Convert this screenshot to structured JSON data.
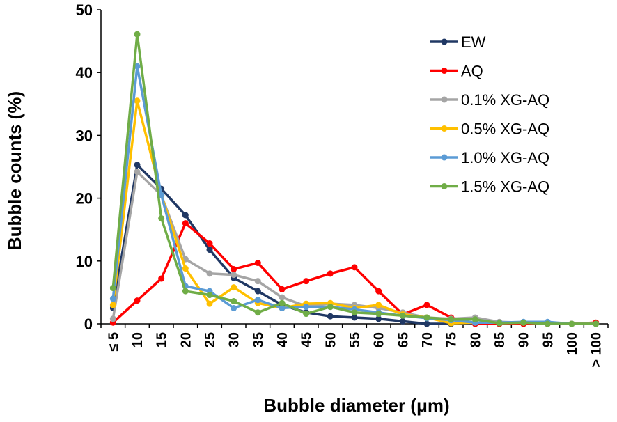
{
  "chart_data": {
    "type": "line",
    "xlabel": "Bubble diameter (μm)",
    "ylabel": "Bubble counts (%)",
    "ylim": [
      0,
      50
    ],
    "y_ticks": [
      "0",
      "10",
      "20",
      "30",
      "40",
      "50"
    ],
    "categories": [
      "≤ 5",
      "10",
      "15",
      "20",
      "25",
      "30",
      "35",
      "40",
      "45",
      "50",
      "55",
      "60",
      "65",
      "70",
      "75",
      "80",
      "85",
      "90",
      "95",
      "100",
      "> 100"
    ],
    "grid": false,
    "legend_position": "top-right",
    "series": [
      {
        "name": "EW",
        "color": "#203864",
        "values": [
          2.5,
          25.3,
          21.5,
          17.3,
          11.8,
          7.3,
          5.2,
          3.0,
          1.8,
          1.2,
          1.0,
          0.8,
          0.4,
          0.0,
          0.0,
          0.0,
          0.0,
          0.0,
          0.0,
          0.0,
          0.0
        ]
      },
      {
        "name": "AQ",
        "color": "#ff0000",
        "values": [
          0.2,
          3.7,
          7.2,
          16.0,
          12.8,
          8.7,
          9.7,
          5.5,
          6.8,
          8.0,
          9.0,
          5.2,
          1.5,
          3.0,
          1.0,
          0.0,
          0.0,
          0.0,
          0.0,
          0.0,
          0.2
        ]
      },
      {
        "name": "0.1% XG-AQ",
        "color": "#a5a5a5",
        "values": [
          0.8,
          24.2,
          20.5,
          10.3,
          8.0,
          7.8,
          6.8,
          4.2,
          2.8,
          3.2,
          3.0,
          2.5,
          1.8,
          1.0,
          0.8,
          1.0,
          0.3,
          0.2,
          0.2,
          0.0,
          0.0
        ]
      },
      {
        "name": "0.5% XG-AQ",
        "color": "#ffc000",
        "values": [
          3.0,
          35.5,
          20.5,
          8.8,
          3.2,
          5.8,
          3.3,
          2.5,
          3.2,
          3.3,
          2.5,
          3.0,
          1.5,
          1.0,
          0.1,
          0.2,
          0.2,
          0.2,
          0.2,
          0.0,
          0.0
        ]
      },
      {
        "name": "1.0% XG-AQ",
        "color": "#5b9bd5",
        "values": [
          4.0,
          41.0,
          20.5,
          6.0,
          5.2,
          2.5,
          3.8,
          2.5,
          2.7,
          2.7,
          2.3,
          1.8,
          1.3,
          0.9,
          0.6,
          0.2,
          0.2,
          0.3,
          0.3,
          0.0,
          0.0
        ]
      },
      {
        "name": "1.5% XG-AQ",
        "color": "#70ad47",
        "values": [
          5.7,
          46.1,
          16.8,
          5.2,
          4.6,
          3.6,
          1.8,
          3.3,
          1.6,
          2.7,
          1.8,
          1.6,
          1.3,
          1.0,
          0.7,
          0.7,
          0.1,
          0.2,
          0.0,
          0.0,
          0.0
        ]
      }
    ]
  }
}
